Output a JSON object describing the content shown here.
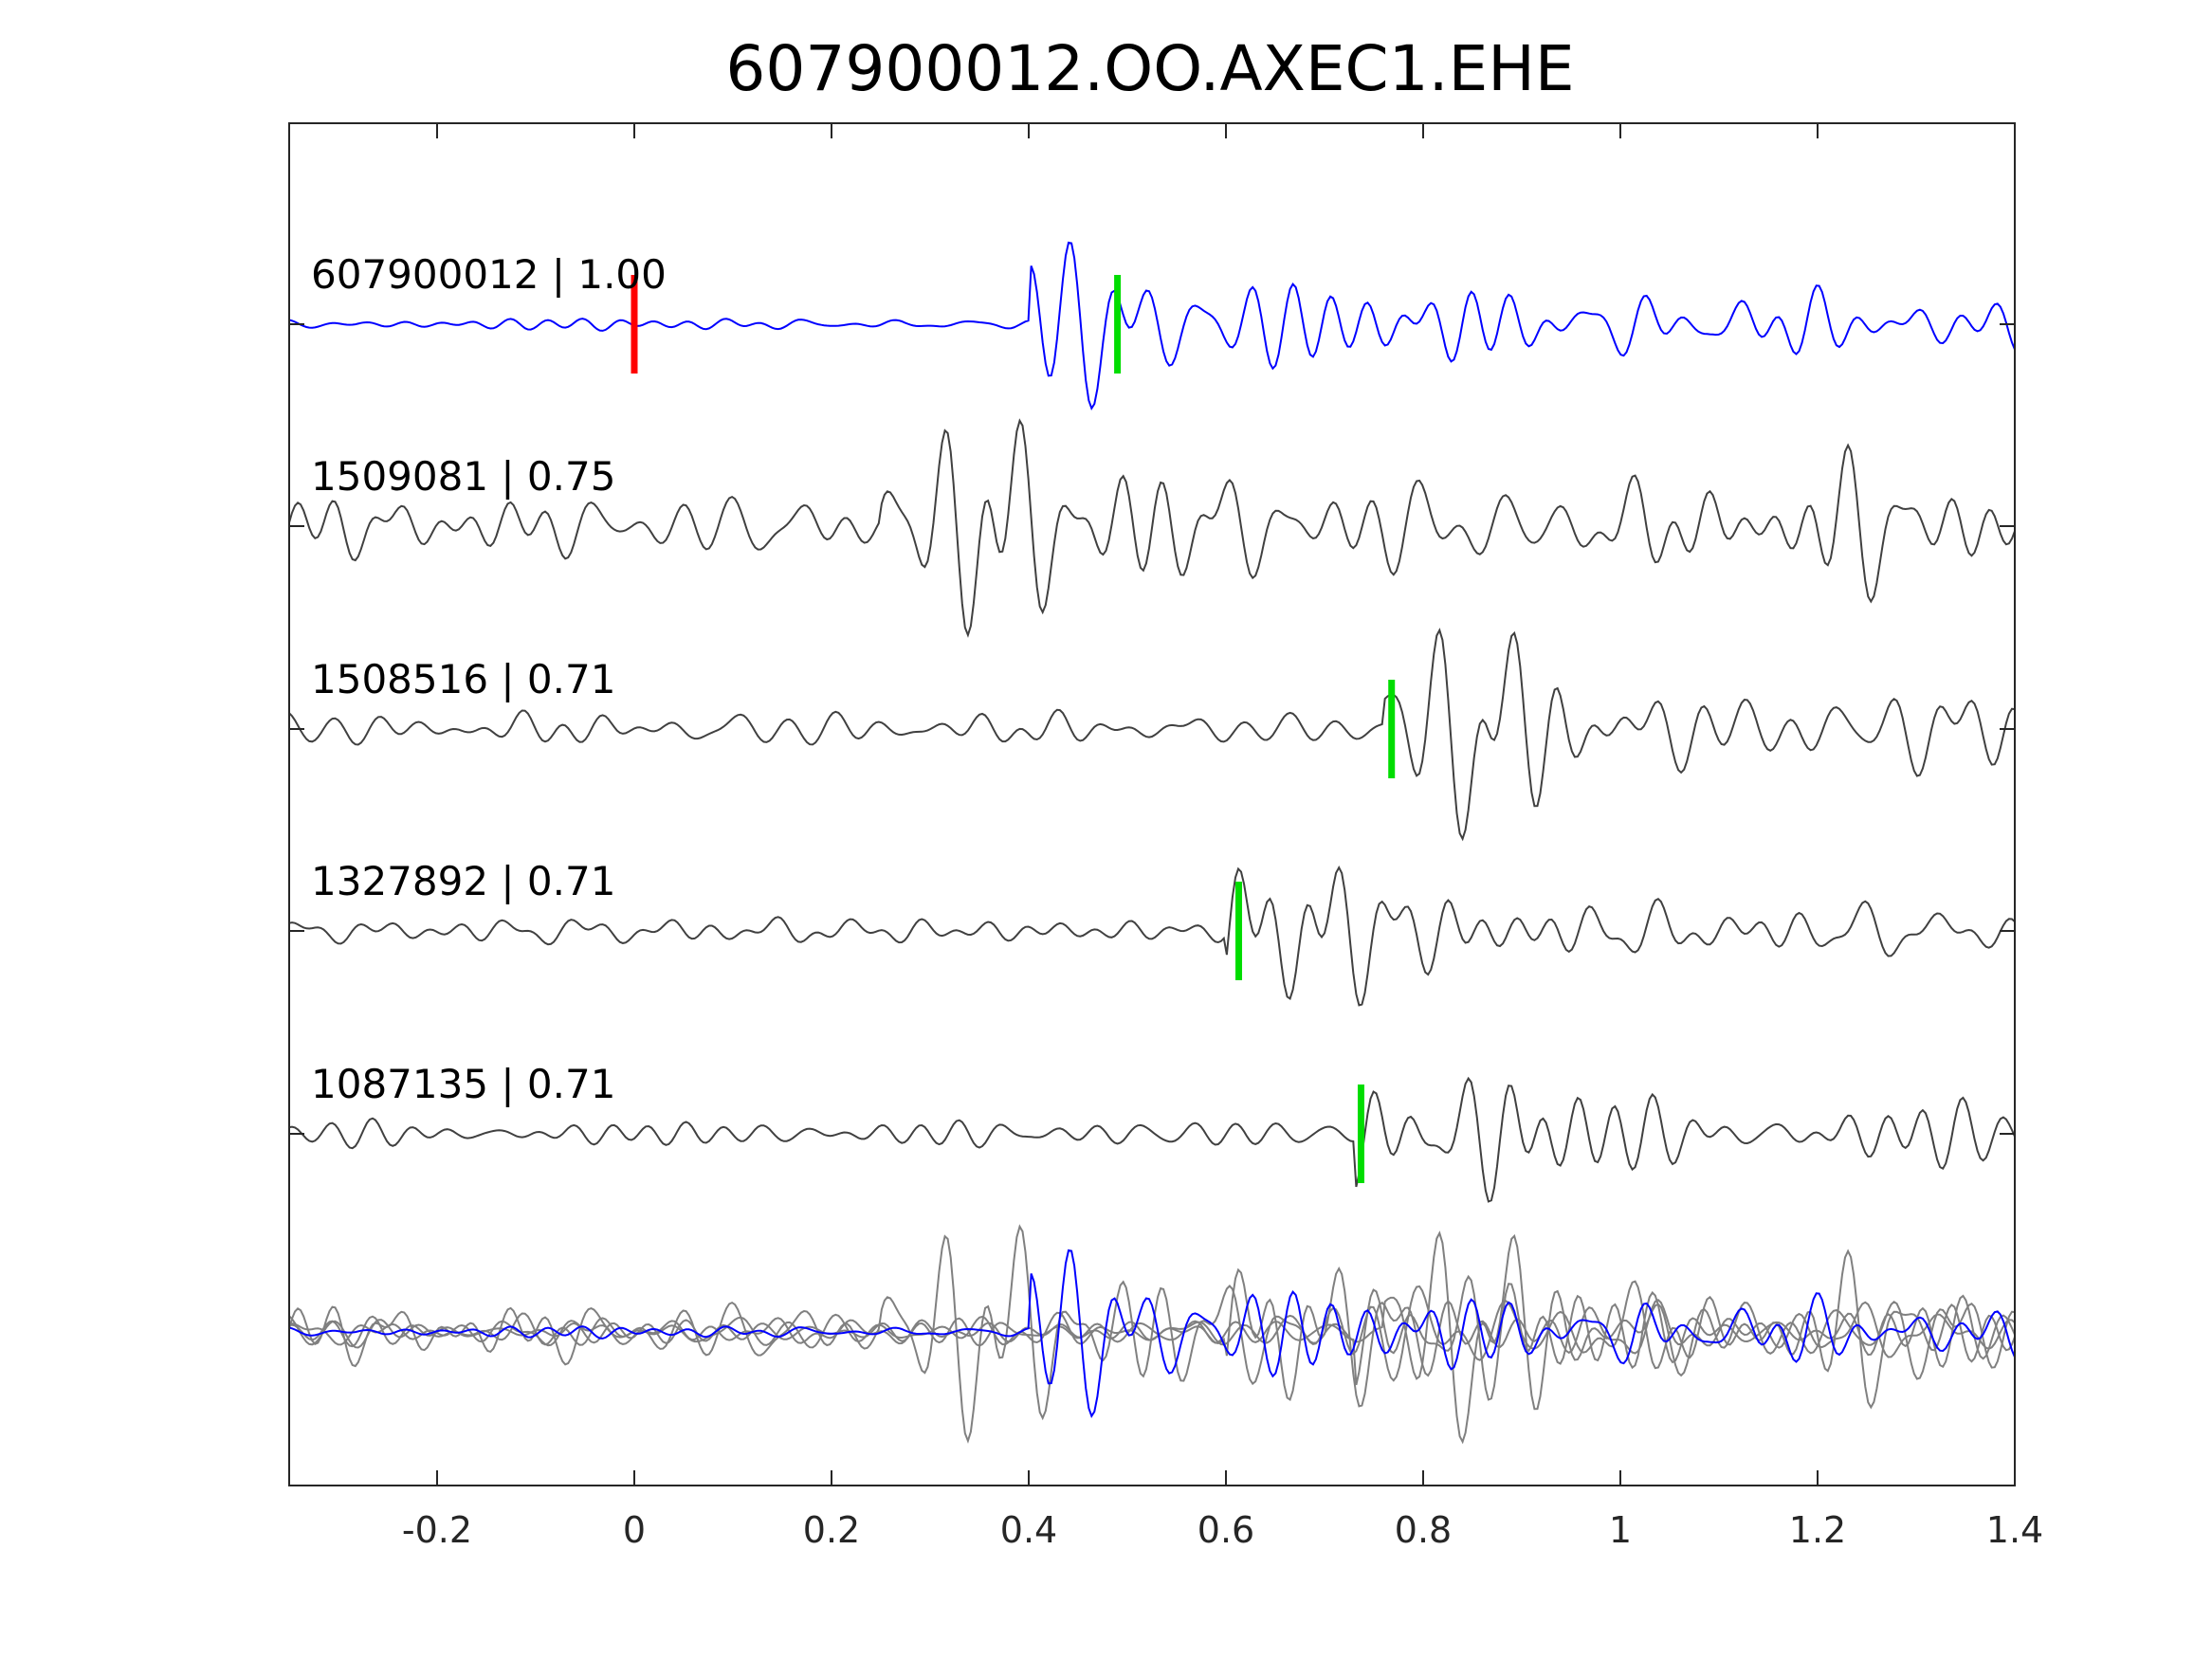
{
  "chart_data": {
    "type": "line",
    "title": "607900012.OO.AXEC1.EHE",
    "xlabel": "",
    "ylabel": "",
    "xlim": [
      -0.35,
      1.4
    ],
    "x_ticks": [
      -0.2,
      0,
      0.2,
      0.4,
      0.6,
      0.8,
      1,
      1.2,
      1.4
    ],
    "x_tick_labels": [
      "-0.2",
      "0",
      "0.2",
      "0.4",
      "0.6",
      "0.8",
      "1",
      "1.2",
      "1.4"
    ],
    "grid": false,
    "legend": "none",
    "colors": {
      "master": "#0000ff",
      "neighbor": "#404040",
      "overlay": "#808080",
      "pick_red": "#ff0000",
      "pick_green": "#00dd00"
    },
    "traces": [
      {
        "label": "607900012 | 1.00",
        "color": "#0000ff",
        "seed": 3,
        "picks": [
          {
            "x": 0.0,
            "color": "#ff0000"
          },
          {
            "x": 0.49,
            "color": "#00dd00"
          }
        ]
      },
      {
        "label": "1509081 | 0.75",
        "color": "#404040",
        "seed": 7,
        "picks": []
      },
      {
        "label": "1508516 | 0.71",
        "color": "#404040",
        "seed": 11,
        "picks": [
          {
            "x": 0.768,
            "color": "#00dd00"
          }
        ]
      },
      {
        "label": "1327892 | 0.71",
        "color": "#404040",
        "seed": 17,
        "picks": [
          {
            "x": 0.613,
            "color": "#00dd00"
          }
        ]
      },
      {
        "label": "1087135 | 0.71",
        "color": "#404040",
        "seed": 23,
        "picks": [
          {
            "x": 0.737,
            "color": "#00dd00"
          }
        ]
      }
    ],
    "overlay": {
      "description_hidden": true
    }
  }
}
